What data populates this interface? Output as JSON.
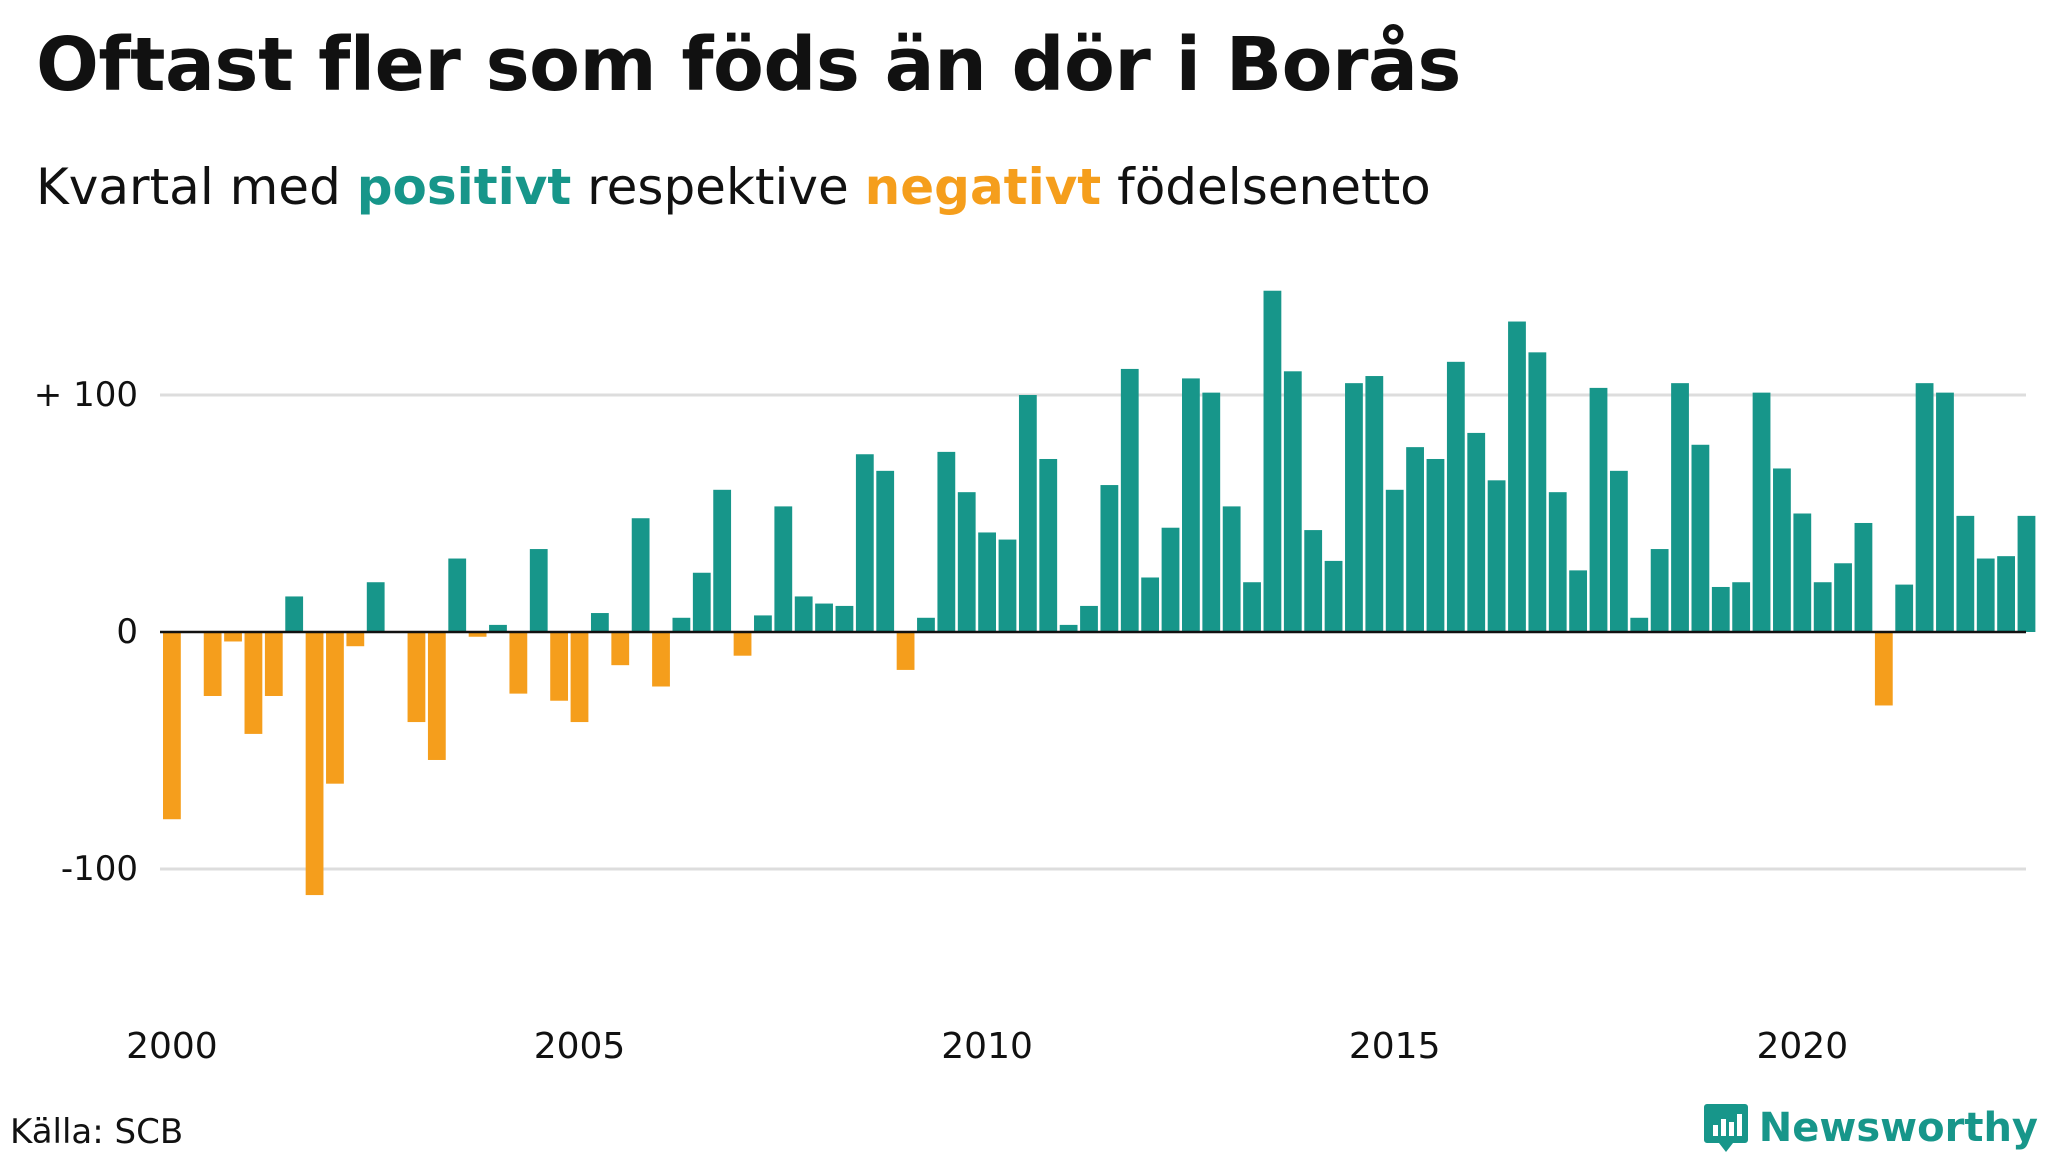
{
  "title": "Oftast fler som föds än dör i Borås",
  "subtitle": {
    "prefix": "Kvartal med ",
    "positive_word": "positivt",
    "middle": " respektive ",
    "negative_word": "negativt",
    "suffix": " födelsenetto"
  },
  "source": "Källa: SCB",
  "brand": "Newsworthy",
  "colors": {
    "positive": "#17968a",
    "negative": "#f59e1c",
    "grid": "#dddddd",
    "axis": "#111111"
  },
  "chart_data": {
    "type": "bar",
    "x_start": "2000 Q1",
    "x_tick_labels": [
      "2000",
      "2005",
      "2010",
      "2015",
      "2020"
    ],
    "y_tick_labels": [
      "+ 100",
      "0",
      "-100"
    ],
    "y_ticks": [
      100,
      0,
      -100
    ],
    "ylim": [
      -150,
      145
    ],
    "grid": true,
    "values": [
      -79,
      0,
      -27,
      -4,
      -43,
      -27,
      15,
      -111,
      -64,
      -6,
      21,
      0,
      -38,
      -54,
      31,
      -2,
      3,
      -26,
      35,
      -29,
      -38,
      8,
      -14,
      48,
      -23,
      6,
      25,
      60,
      -10,
      7,
      53,
      15,
      12,
      11,
      75,
      68,
      -16,
      6,
      76,
      59,
      42,
      39,
      100,
      73,
      3,
      11,
      62,
      111,
      23,
      44,
      107,
      101,
      53,
      21,
      144,
      110,
      43,
      30,
      105,
      108,
      60,
      78,
      73,
      114,
      84,
      64,
      131,
      118,
      59,
      26,
      103,
      68,
      6,
      35,
      105,
      79,
      19,
      21,
      101,
      69,
      50,
      21,
      29,
      46,
      -31,
      20,
      105,
      101,
      49,
      31,
      32,
      49
    ]
  }
}
